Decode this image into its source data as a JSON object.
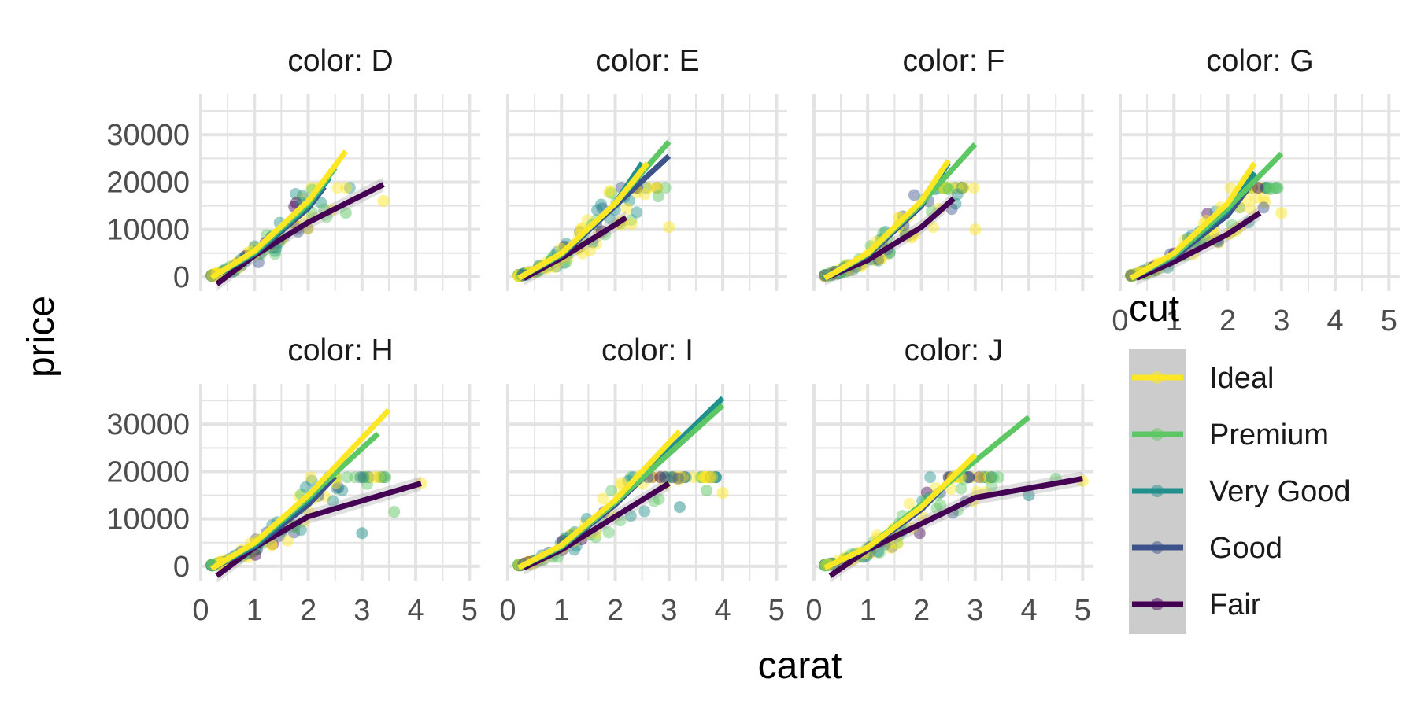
{
  "chart_data": {
    "type": "scatter",
    "facet_prefix": "color: ",
    "facets": [
      "D",
      "E",
      "F",
      "G",
      "H",
      "I",
      "J"
    ],
    "x": {
      "label": "carat",
      "lim": [
        0,
        5.2
      ],
      "ticks": [
        0,
        1,
        2,
        3,
        4,
        5
      ]
    },
    "y": {
      "label": "price",
      "lim": [
        -3000,
        38500
      ],
      "ticks": [
        0,
        10000,
        20000,
        30000
      ]
    },
    "grid": true,
    "legend": {
      "title": "cut",
      "position": "right",
      "items": [
        "Ideal",
        "Premium",
        "Very Good",
        "Good",
        "Fair"
      ]
    },
    "series": [
      {
        "name": "Ideal",
        "color": "#FDE725"
      },
      {
        "name": "Premium",
        "color": "#5DC863"
      },
      {
        "name": "Very Good",
        "color": "#21908C"
      },
      {
        "name": "Good",
        "color": "#3B528B"
      },
      {
        "name": "Fair",
        "color": "#440154"
      }
    ],
    "smooth_lines": {
      "D": {
        "Ideal": [
          [
            0.2,
            -200
          ],
          [
            1,
            5500
          ],
          [
            2,
            16000
          ],
          [
            2.7,
            26500
          ]
        ],
        "Premium": [
          [
            0.2,
            -200
          ],
          [
            1,
            5200
          ],
          [
            2,
            15500
          ],
          [
            2.5,
            23000
          ]
        ],
        "Very Good": [
          [
            0.2,
            -200
          ],
          [
            1,
            5000
          ],
          [
            2,
            15000
          ],
          [
            2.4,
            21000
          ]
        ],
        "Good": [
          [
            0.2,
            -200
          ],
          [
            1,
            4800
          ],
          [
            2,
            14500
          ],
          [
            2.3,
            19000
          ]
        ],
        "Fair": [
          [
            0.3,
            -1500
          ],
          [
            1,
            4500
          ],
          [
            2,
            11500
          ],
          [
            3.4,
            19500
          ]
        ]
      },
      "E": {
        "Ideal": [
          [
            0.2,
            -300
          ],
          [
            1,
            5000
          ],
          [
            2,
            15500
          ],
          [
            2.6,
            24000
          ]
        ],
        "Premium": [
          [
            0.2,
            -300
          ],
          [
            1,
            4800
          ],
          [
            2,
            15500
          ],
          [
            3,
            28500
          ]
        ],
        "Very Good": [
          [
            0.2,
            -300
          ],
          [
            1,
            4800
          ],
          [
            2,
            15500
          ],
          [
            2.5,
            24000
          ]
        ],
        "Good": [
          [
            0.2,
            -300
          ],
          [
            1,
            4500
          ],
          [
            2,
            15000
          ],
          [
            3,
            25500
          ]
        ],
        "Fair": [
          [
            0.3,
            -300
          ],
          [
            1,
            4000
          ],
          [
            2,
            11000
          ],
          [
            2.2,
            12500
          ]
        ]
      },
      "F": {
        "Ideal": [
          [
            0.2,
            -300
          ],
          [
            1,
            5000
          ],
          [
            2,
            16000
          ],
          [
            2.5,
            24500
          ]
        ],
        "Premium": [
          [
            0.2,
            -300
          ],
          [
            1,
            4800
          ],
          [
            2,
            15500
          ],
          [
            3,
            28000
          ]
        ],
        "Very Good": [
          [
            0.2,
            -300
          ],
          [
            1,
            4800
          ],
          [
            2,
            15500
          ],
          [
            2.5,
            24000
          ]
        ],
        "Good": [
          [
            0.2,
            -300
          ],
          [
            1,
            4500
          ],
          [
            2,
            15000
          ],
          [
            2.5,
            24500
          ]
        ],
        "Fair": [
          [
            0.2,
            -300
          ],
          [
            1,
            3500
          ],
          [
            2,
            10500
          ],
          [
            2.6,
            16500
          ]
        ]
      },
      "G": {
        "Ideal": [
          [
            0.2,
            -300
          ],
          [
            1,
            5000
          ],
          [
            2,
            15500
          ],
          [
            2.5,
            24000
          ]
        ],
        "Premium": [
          [
            0.2,
            -300
          ],
          [
            1,
            4500
          ],
          [
            2,
            14500
          ],
          [
            3,
            26000
          ]
        ],
        "Very Good": [
          [
            0.2,
            -300
          ],
          [
            1,
            4500
          ],
          [
            2,
            14000
          ],
          [
            2.5,
            22000
          ]
        ],
        "Good": [
          [
            0.2,
            -300
          ],
          [
            1,
            4200
          ],
          [
            2,
            13000
          ],
          [
            2.5,
            20500
          ]
        ],
        "Fair": [
          [
            0.3,
            -300
          ],
          [
            1,
            3200
          ],
          [
            2,
            9000
          ],
          [
            2.6,
            13500
          ]
        ]
      },
      "H": {
        "Ideal": [
          [
            0.2,
            -500
          ],
          [
            1,
            5000
          ],
          [
            2,
            15000
          ],
          [
            3.5,
            33000
          ]
        ],
        "Premium": [
          [
            0.2,
            -500
          ],
          [
            1,
            4800
          ],
          [
            2,
            14500
          ],
          [
            3.3,
            28000
          ]
        ],
        "Very Good": [
          [
            0.2,
            -500
          ],
          [
            1,
            4500
          ],
          [
            2,
            14000
          ],
          [
            2.5,
            20000
          ]
        ],
        "Good": [
          [
            0.2,
            -500
          ],
          [
            1,
            4200
          ],
          [
            2,
            13000
          ],
          [
            2.5,
            19000
          ]
        ],
        "Fair": [
          [
            0.3,
            -2000
          ],
          [
            1,
            4000
          ],
          [
            2,
            10500
          ],
          [
            4.1,
            17500
          ]
        ]
      },
      "I": {
        "Ideal": [
          [
            0.2,
            -300
          ],
          [
            1,
            4500
          ],
          [
            2,
            14000
          ],
          [
            3.2,
            28500
          ]
        ],
        "Premium": [
          [
            0.2,
            -300
          ],
          [
            1,
            4200
          ],
          [
            2,
            13500
          ],
          [
            4,
            34000
          ]
        ],
        "Very Good": [
          [
            0.2,
            -300
          ],
          [
            1,
            4200
          ],
          [
            2,
            13500
          ],
          [
            4,
            35500
          ]
        ],
        "Good": [
          [
            0.2,
            -300
          ],
          [
            1,
            4000
          ],
          [
            2,
            13000
          ],
          [
            3,
            24000
          ]
        ],
        "Fair": [
          [
            0.3,
            -300
          ],
          [
            1,
            3500
          ],
          [
            2,
            10500
          ],
          [
            3,
            17500
          ]
        ]
      },
      "J": {
        "Ideal": [
          [
            0.2,
            -300
          ],
          [
            1,
            4000
          ],
          [
            2,
            12500
          ],
          [
            3,
            23500
          ]
        ],
        "Premium": [
          [
            0.2,
            -300
          ],
          [
            1,
            4000
          ],
          [
            2,
            13000
          ],
          [
            4,
            31500
          ]
        ],
        "Very Good": [
          [
            0.2,
            -300
          ],
          [
            1,
            4000
          ],
          [
            2,
            12500
          ],
          [
            2.7,
            20000
          ]
        ],
        "Good": [
          [
            0.2,
            -300
          ],
          [
            1,
            3800
          ],
          [
            2,
            12000
          ],
          [
            2.6,
            19000
          ]
        ],
        "Fair": [
          [
            0.3,
            -2000
          ],
          [
            1,
            3500
          ],
          [
            3,
            14500
          ],
          [
            5,
            18500
          ]
        ]
      }
    }
  }
}
